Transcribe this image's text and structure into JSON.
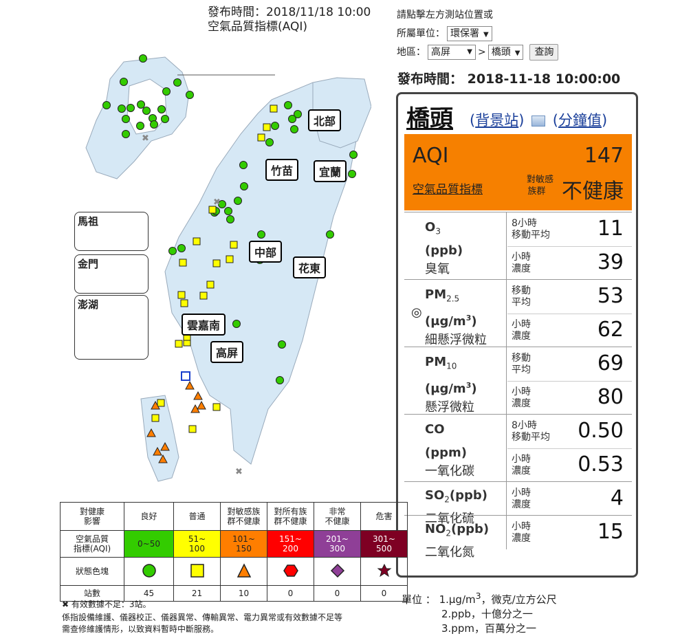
{
  "header": {
    "publish_line": "發布時間：2018/11/18 10:00",
    "subtitle": "空氣品質指標(AQI)"
  },
  "query": {
    "instruction": "請點擊左方測站位置或",
    "agency_label": "所屬單位：",
    "agency_value": "環保署",
    "area_label": "地區：",
    "county_value": "高屏",
    "sep": ">",
    "station_value": "橋頭",
    "search_label": "查詢"
  },
  "publish_time": "發布時間： 2018-11-18 10:00:00",
  "station": {
    "name": "橋頭",
    "type_open": "(",
    "type_link": "背景站",
    "type_close": ")",
    "minute_open": "(",
    "minute_link": "分鐘值",
    "minute_close": ")",
    "aqi_label": "AQI",
    "aqi_value": "147",
    "aqi_link": "空氣品質指標",
    "sensitive_line1": "對敏感",
    "sensitive_line2": "族群",
    "status": "不健康",
    "aqi_color": "#f68000"
  },
  "pollutants": [
    {
      "name": "O",
      "sub": "3",
      "unit": "(ppb)",
      "cn": "臭氧",
      "marker": "",
      "rows": [
        {
          "t1": "8小時",
          "t2": "移動平均",
          "v": "11"
        },
        {
          "t1": "小時",
          "t2": "濃度",
          "v": "39"
        }
      ]
    },
    {
      "name": "PM",
      "sub": "2.5",
      "unit": "(μg/m",
      "unit_sup": "3",
      "unit_end": ")",
      "cn": "細懸浮微粒",
      "marker": "◎",
      "rows": [
        {
          "t1": "移動",
          "t2": "平均",
          "v": "53"
        },
        {
          "t1": "小時",
          "t2": "濃度",
          "v": "62"
        }
      ]
    },
    {
      "name": "PM",
      "sub": "10",
      "unit": "(μg/m",
      "unit_sup": "3",
      "unit_end": ")",
      "cn": "懸浮微粒",
      "marker": "",
      "rows": [
        {
          "t1": "移動",
          "t2": "平均",
          "v": "69"
        },
        {
          "t1": "小時",
          "t2": "濃度",
          "v": "80"
        }
      ]
    },
    {
      "name": "CO",
      "sub": "",
      "unit": "(ppm)",
      "cn": "一氧化碳",
      "marker": "",
      "rows": [
        {
          "t1": "8小時",
          "t2": "移動平均",
          "v": "0.50"
        },
        {
          "t1": "小時",
          "t2": "濃度",
          "v": "0.53"
        }
      ]
    },
    {
      "name": "SO",
      "sub": "2",
      "unit": "(ppb)",
      "cn": "二氧化硫",
      "marker": "",
      "rows": [
        {
          "t1": "小時",
          "t2": "濃度",
          "v": "4"
        }
      ]
    },
    {
      "name": "NO",
      "sub": "2",
      "unit": "(ppb)",
      "cn": "二氧化氮",
      "marker": "",
      "rows": [
        {
          "t1": "小時",
          "t2": "濃度",
          "v": "15"
        }
      ]
    }
  ],
  "units_note": {
    "label": "單位 ：",
    "l1": "1.μg/m",
    "l1_sup": "3",
    "l1_end": "，微克/立方公尺",
    "l2": "2.ppb，十億分之一",
    "l3": "3.ppm，百萬分之一"
  },
  "legend": {
    "health_hdr": [
      "對健康",
      "影響"
    ],
    "aqi_hdr": [
      "空氣品質",
      "指標(AQI)"
    ],
    "symbol_hdr": "狀態色塊",
    "count_hdr": "站數",
    "levels": [
      {
        "name": [
          "良好"
        ],
        "range": [
          "0~50"
        ],
        "color": "#33cc00",
        "count": "45",
        "shape": "circle"
      },
      {
        "name": [
          "普通"
        ],
        "range": [
          "51~",
          "100"
        ],
        "color": "#ffff00",
        "count": "21",
        "shape": "square"
      },
      {
        "name": [
          "對敏感族",
          "群不健康"
        ],
        "range": [
          "101~",
          "150"
        ],
        "color": "#ff7e00",
        "count": "10",
        "shape": "triangle"
      },
      {
        "name": [
          "對所有族",
          "群不健康"
        ],
        "range": [
          "151~",
          "200"
        ],
        "color": "#ff0000",
        "count": "0",
        "shape": "hexagon"
      },
      {
        "name": [
          "非常",
          "不健康"
        ],
        "range": [
          "201~",
          "300"
        ],
        "color": "#8f3f97",
        "count": "0",
        "shape": "diamond"
      },
      {
        "name": [
          "危害"
        ],
        "range": [
          "301~",
          "500"
        ],
        "color": "#7e0023",
        "count": "0",
        "shape": "star"
      }
    ],
    "invalid_note": "有效數據不足：3站。",
    "maintenance_l1": "係指設備維護、儀器校正、儀器異常、傳輸異常、電力異常或有效數據不足等",
    "maintenance_l2": "需查修維護情形，以致資料暫時中斷服務。"
  },
  "map": {
    "regions": [
      "北部",
      "竹苗",
      "宜蘭",
      "中部",
      "花東",
      "雲嘉南",
      "高屏"
    ],
    "insets": [
      "馬祖",
      "金門",
      "澎湖"
    ],
    "land_color": "#d6e8f5"
  }
}
